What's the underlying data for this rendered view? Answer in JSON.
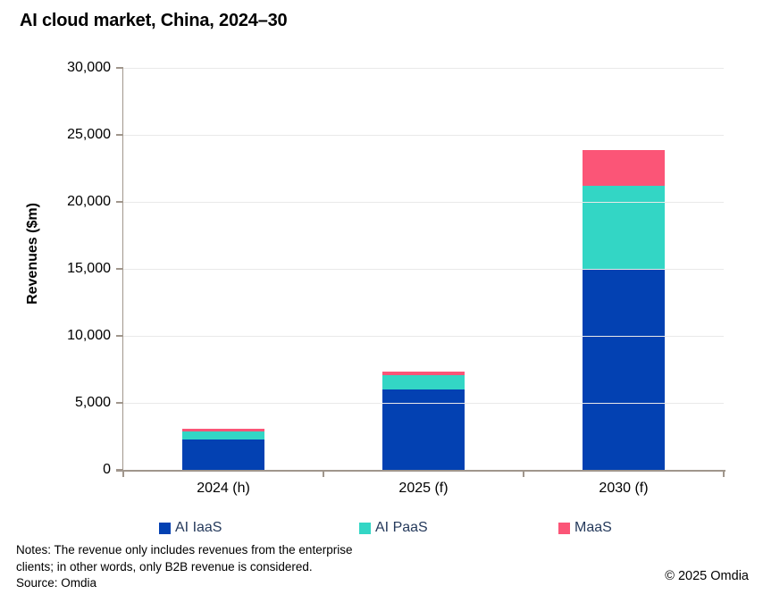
{
  "title": "AI cloud market, China, 2024–30",
  "footer": {
    "notes": "Notes: The revenue only includes revenues from the enterprise\nclients; in other words, only B2B revenue is considered.",
    "source": "Source: Omdia",
    "copyright": "© 2025 Omdia"
  },
  "colors": {
    "axis": "#a0968c",
    "gridline": "#e9e9e9",
    "legend_text": "#253a5c",
    "iaas_blue": "#0341b2",
    "paas_teal": "#33d6c5",
    "maas_pink": "#fb5577"
  },
  "chart_data": {
    "type": "bar",
    "stacked": true,
    "title": "AI cloud market, China, 2024–30",
    "categories": [
      "2024 (h)",
      "2025 (f)",
      "2030 (f)"
    ],
    "series": [
      {
        "name": "AI IaaS",
        "color": "#0341b2",
        "values": [
          2300,
          6000,
          15000
        ]
      },
      {
        "name": "AI PaaS",
        "color": "#33d6c5",
        "values": [
          550,
          1050,
          6200
        ]
      },
      {
        "name": "MaaS",
        "color": "#fb5577",
        "values": [
          250,
          270,
          2650
        ]
      }
    ],
    "totals": [
      3100,
      7320,
      23850
    ],
    "xlabel": "",
    "ylabel": "Revenues ($m)",
    "ylim": [
      0,
      30000
    ],
    "ytick_interval": 5000,
    "ytick_labels": [
      "0",
      "5,000",
      "10,000",
      "15,000",
      "20,000",
      "25,000",
      "30,000"
    ],
    "grid": true,
    "legend_position": "bottom"
  }
}
